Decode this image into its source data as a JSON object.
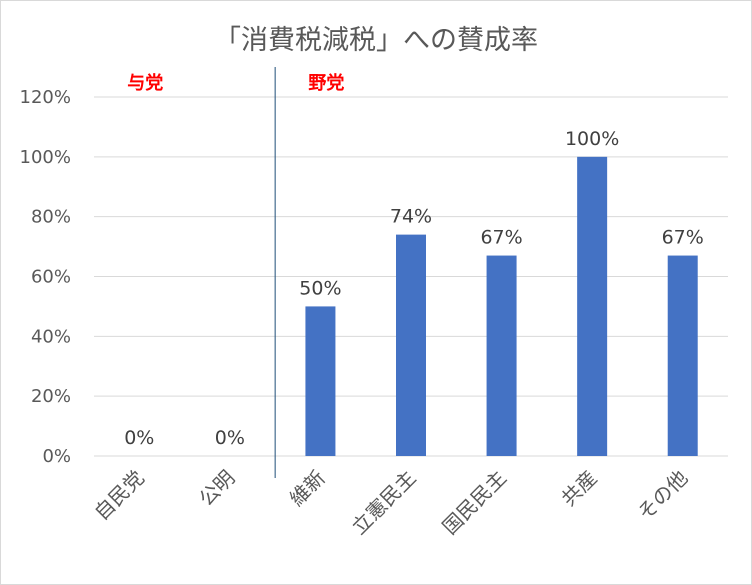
{
  "chart_data": {
    "type": "bar",
    "title": "「消費税減税」への賛成率",
    "xlabel": "",
    "ylabel": "",
    "categories": [
      "自民党",
      "公明",
      "維新",
      "立憲民主",
      "国民民主",
      "共産",
      "その他"
    ],
    "values": [
      0,
      0,
      50,
      74,
      67,
      100,
      67
    ],
    "data_labels": [
      "0%",
      "0%",
      "50%",
      "74%",
      "67%",
      "100%",
      "67%"
    ],
    "ylim": [
      0,
      120
    ],
    "yticks": [
      0,
      20,
      40,
      60,
      80,
      100,
      120
    ],
    "ytick_labels": [
      "0%",
      "20%",
      "40%",
      "60%",
      "80%",
      "100%",
      "120%"
    ],
    "grid": true,
    "legend": "none",
    "bar_color": "#4472c4",
    "divider_after_index": 1,
    "groups": [
      {
        "label": "与党",
        "color": "#ff0000",
        "start_index": 0
      },
      {
        "label": "野党",
        "color": "#ff0000",
        "start_index": 2
      }
    ]
  }
}
